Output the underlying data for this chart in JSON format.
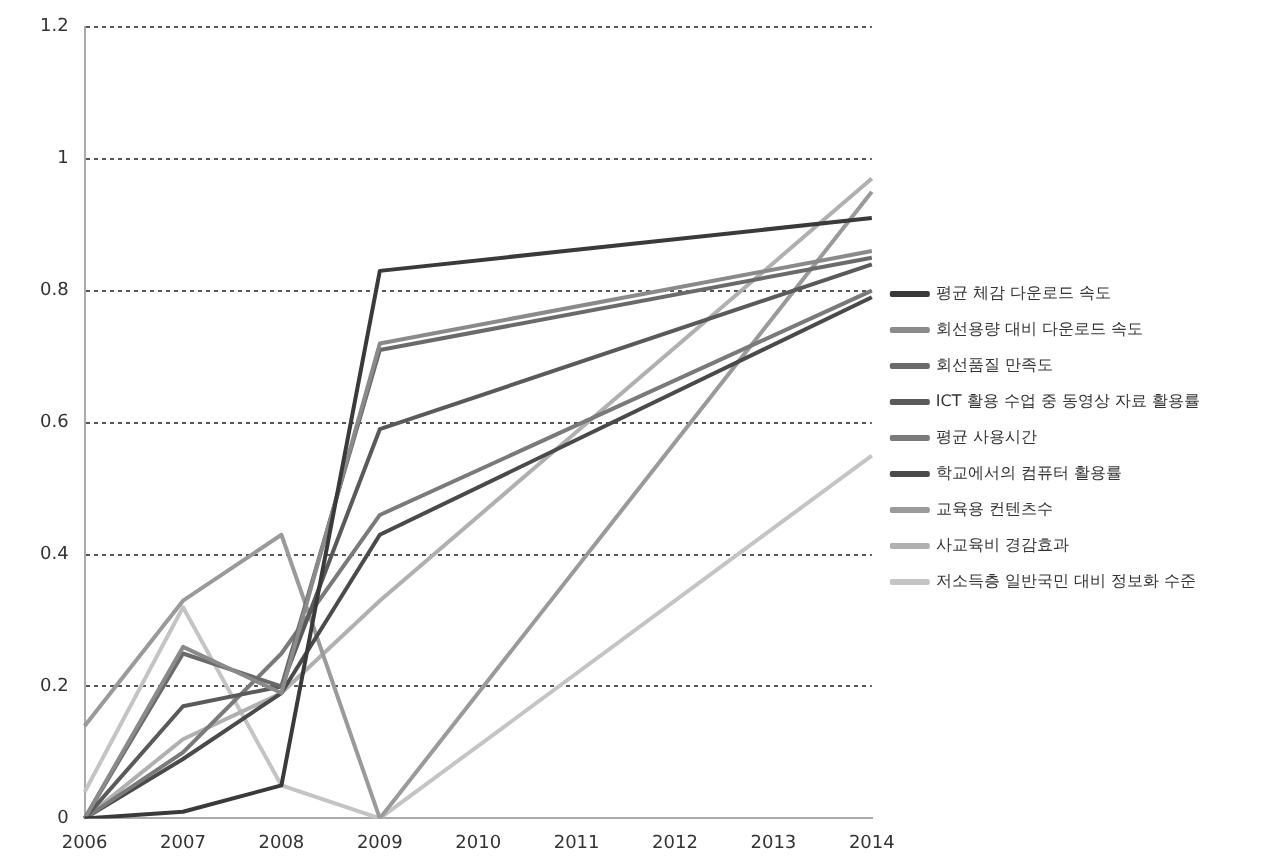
{
  "chart_data": {
    "type": "line",
    "categories": [
      "2006",
      "2007",
      "2008",
      "2009",
      "2010",
      "2011",
      "2012",
      "2013",
      "2014"
    ],
    "series": [
      {
        "name": "평균 체감 다운로드 속도",
        "color": "#3a3a3a",
        "values": [
          0,
          0.01,
          0.05,
          0.83,
          null,
          null,
          null,
          null,
          0.91
        ]
      },
      {
        "name": "회선용량 대비 다운로드 속도",
        "color": "#8a8a8a",
        "values": [
          0,
          0.26,
          0.19,
          0.72,
          null,
          null,
          null,
          null,
          0.86
        ]
      },
      {
        "name": "회선품질 만족도",
        "color": "#6a6a6a",
        "values": [
          0,
          0.25,
          0.2,
          0.71,
          null,
          null,
          null,
          null,
          0.85
        ]
      },
      {
        "name": "ICT 활용 수업 중 동영상 자료 활용률",
        "color": "#5a5a5a",
        "values": [
          0,
          0.17,
          0.2,
          0.59,
          null,
          null,
          null,
          null,
          0.84
        ]
      },
      {
        "name": "평균 사용시간",
        "color": "#7a7a7a",
        "values": [
          0,
          0.1,
          0.25,
          0.46,
          null,
          null,
          null,
          null,
          0.8
        ]
      },
      {
        "name": "학교에서의 컴퓨터 활용률",
        "color": "#4a4a4a",
        "values": [
          0,
          0.09,
          0.19,
          0.43,
          null,
          null,
          null,
          null,
          0.79
        ]
      },
      {
        "name": "교육용 컨텐츠수",
        "color": "#9a9a9a",
        "values": [
          0.14,
          0.33,
          0.43,
          0,
          null,
          null,
          null,
          null,
          0.95
        ]
      },
      {
        "name": "사교육비 경감효과",
        "color": "#b0b0b0",
        "values": [
          0,
          0.12,
          0.19,
          0.33,
          null,
          null,
          null,
          null,
          0.97
        ]
      },
      {
        "name": "저소득층 일반국민 대비 정보화 수준",
        "color": "#c4c4c4",
        "values": [
          0.04,
          0.32,
          0.05,
          0,
          null,
          null,
          null,
          null,
          0.55
        ]
      }
    ],
    "ylim": [
      0,
      1.2
    ],
    "yticks": [
      0,
      0.2,
      0.4,
      0.6,
      0.8,
      1,
      1.2
    ],
    "grid": "y",
    "legend": "right",
    "marker": "none",
    "line_style": "solid"
  }
}
